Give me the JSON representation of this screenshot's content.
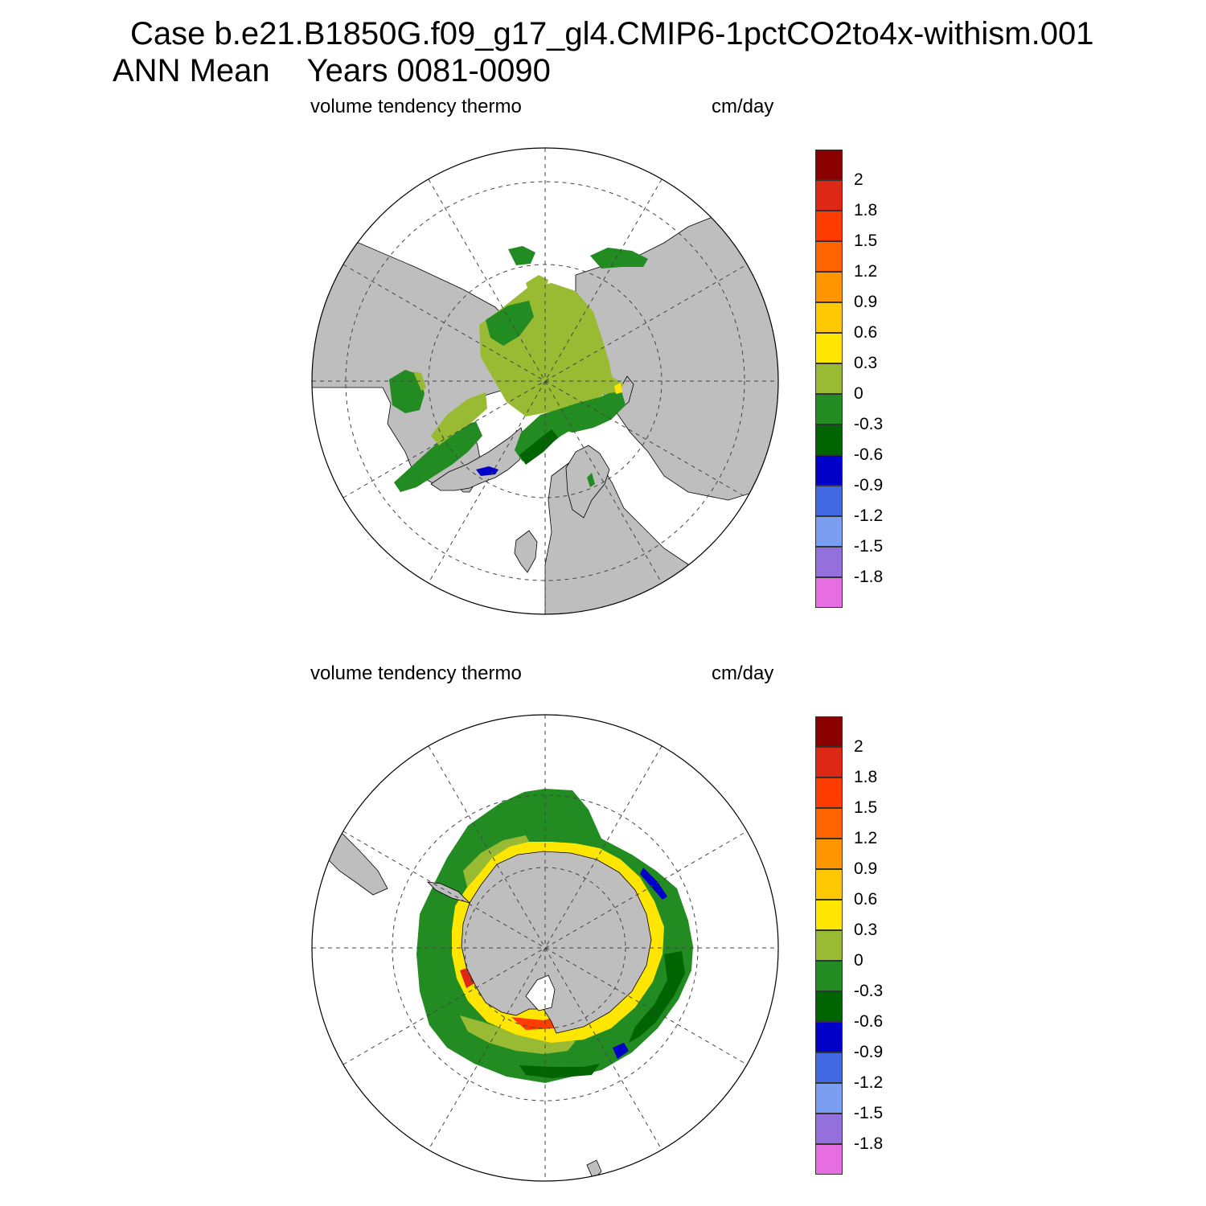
{
  "title": {
    "case_line": "Case b.e21.B1850G.f09_g17_gl4.CMIP6-1pctCO2to4x-withism.001",
    "period_label": "ANN Mean",
    "years_label": "Years 0081-0090"
  },
  "panels": [
    {
      "hemisphere": "north",
      "variable_label": "volume tendency thermo",
      "units_label": "cm/day"
    },
    {
      "hemisphere": "south",
      "variable_label": "volume tendency thermo",
      "units_label": "cm/day"
    }
  ],
  "colorbar": {
    "tick_labels": [
      "2",
      "1.8",
      "1.5",
      "1.2",
      "0.9",
      "0.6",
      "0.3",
      "0",
      "-0.3",
      "-0.6",
      "-0.9",
      "-1.2",
      "-1.5",
      "-1.8"
    ],
    "colors": [
      "#8b0000",
      "#dc2814",
      "#ff3c00",
      "#ff6400",
      "#ff9600",
      "#ffc800",
      "#ffe600",
      "#99bb33",
      "#228b22",
      "#006400",
      "#0000c8",
      "#4169e1",
      "#7b9ef0",
      "#9370db",
      "#e66ee0"
    ]
  },
  "map_colors": {
    "land": "#bebebe",
    "ocean_no_ice": "#ffffff",
    "graticule": "#444444"
  }
}
